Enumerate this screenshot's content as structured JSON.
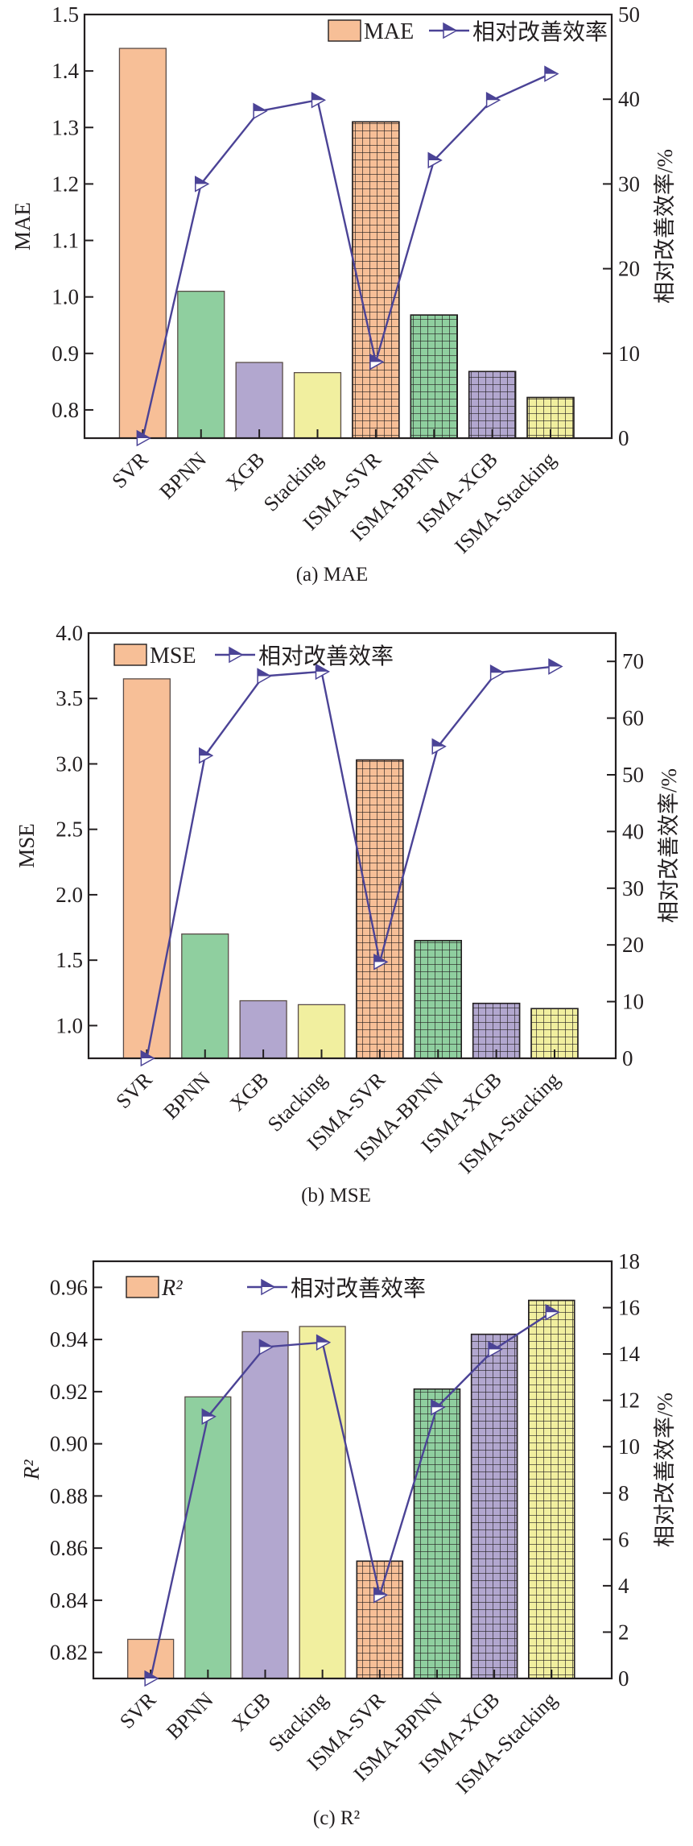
{
  "chart_data": [
    {
      "type": "bar",
      "title": "",
      "caption": "(a) MAE",
      "categories": [
        "SVR",
        "BPNN",
        "XGB",
        "Stacking",
        "ISMA-SVR",
        "ISMA-BPNN",
        "ISMA-XGB",
        "ISMA-Stacking"
      ],
      "series": [
        {
          "name": "MAE",
          "type": "bar",
          "axis": "left",
          "values": [
            1.44,
            1.01,
            0.884,
            0.866,
            1.31,
            0.968,
            0.868,
            0.822
          ]
        },
        {
          "name": "相对改善效率",
          "type": "line",
          "axis": "right",
          "values": [
            0,
            30.0,
            38.6,
            39.9,
            9.0,
            32.8,
            39.9,
            43.0
          ]
        }
      ],
      "xlabel": "",
      "ylabel": "MAE",
      "ylabel_italic": false,
      "y2label": "相对改善效率/%",
      "ylim": [
        0.75,
        1.5
      ],
      "yticks": [
        "0.8",
        "0.9",
        "1.0",
        "1.1",
        "1.2",
        "1.3",
        "1.4",
        "1.5"
      ],
      "ytick_values": [
        0.8,
        0.9,
        1.0,
        1.1,
        1.2,
        1.3,
        1.4,
        1.5
      ],
      "y2lim": [
        0,
        50
      ],
      "y2ticks": [
        "0",
        "10",
        "20",
        "30",
        "40",
        "50"
      ],
      "y2tick_values": [
        0,
        10,
        20,
        30,
        40,
        50
      ],
      "legend": {
        "placement": "top-right",
        "entries": [
          "MAE",
          "相对改善效率"
        ]
      },
      "grid": false
    },
    {
      "type": "bar",
      "title": "",
      "caption": "(b) MSE",
      "categories": [
        "SVR",
        "BPNN",
        "XGB",
        "Stacking",
        "ISMA-SVR",
        "ISMA-BPNN",
        "ISMA-XGB",
        "ISMA-Stacking"
      ],
      "series": [
        {
          "name": "MSE",
          "type": "bar",
          "axis": "left",
          "values": [
            3.65,
            1.7,
            1.19,
            1.16,
            3.03,
            1.65,
            1.17,
            1.13
          ]
        },
        {
          "name": "相对改善效率",
          "type": "line",
          "axis": "right",
          "values": [
            0,
            53.4,
            67.4,
            68.2,
            17.0,
            55.0,
            68.0,
            69.1
          ]
        }
      ],
      "xlabel": "",
      "ylabel": "MSE",
      "ylabel_italic": false,
      "y2label": "相对改善效率/%",
      "ylim": [
        0.75,
        4.0
      ],
      "yticks": [
        "1.0",
        "1.5",
        "2.0",
        "2.5",
        "3.0",
        "3.5",
        "4.0"
      ],
      "ytick_values": [
        1.0,
        1.5,
        2.0,
        2.5,
        3.0,
        3.5,
        4.0
      ],
      "y2lim": [
        0,
        75
      ],
      "y2ticks": [
        "0",
        "10",
        "20",
        "30",
        "40",
        "50",
        "60",
        "70"
      ],
      "y2tick_values": [
        0,
        10,
        20,
        30,
        40,
        50,
        60,
        70
      ],
      "legend": {
        "placement": "top-left",
        "entries": [
          "MSE",
          "相对改善效率"
        ]
      },
      "grid": false
    },
    {
      "type": "bar",
      "title": "",
      "caption": "(c) R²",
      "categories": [
        "SVR",
        "BPNN",
        "XGB",
        "Stacking",
        "ISMA-SVR",
        "ISMA-BPNN",
        "ISMA-XGB",
        "ISMA-Stacking"
      ],
      "series": [
        {
          "name": "R²",
          "type": "bar",
          "axis": "left",
          "values": [
            0.825,
            0.918,
            0.943,
            0.945,
            0.855,
            0.921,
            0.942,
            0.955
          ]
        },
        {
          "name": "相对改善效率",
          "type": "line",
          "axis": "right",
          "values": [
            0,
            11.3,
            14.3,
            14.5,
            3.6,
            11.7,
            14.2,
            15.8
          ]
        }
      ],
      "xlabel": "",
      "ylabel": "R²",
      "ylabel_italic": true,
      "y2label": "相对改善效率/%",
      "ylim": [
        0.81,
        0.97
      ],
      "yticks": [
        "0.82",
        "0.84",
        "0.86",
        "0.88",
        "0.90",
        "0.92",
        "0.94",
        "0.96"
      ],
      "ytick_values": [
        0.82,
        0.84,
        0.86,
        0.88,
        0.9,
        0.92,
        0.94,
        0.96
      ],
      "y2lim": [
        0,
        18
      ],
      "y2ticks": [
        "0",
        "2",
        "4",
        "6",
        "8",
        "10",
        "12",
        "14",
        "16",
        "18"
      ],
      "y2tick_values": [
        0,
        2,
        4,
        6,
        8,
        10,
        12,
        14,
        16,
        18
      ],
      "legend": {
        "placement": "top-left",
        "entries": [
          "R²",
          "相对改善效率"
        ]
      },
      "grid": false
    }
  ],
  "colors": {
    "bar_fills": [
      "#f7bf97",
      "#8fcf9f",
      "#b2a7cf",
      "#f1ef9f",
      "#f7bf97",
      "#8fcf9f",
      "#b2a7cf",
      "#f1ef9f"
    ],
    "hatched": [
      false,
      false,
      false,
      false,
      true,
      true,
      true,
      true
    ],
    "line": "#4b4396",
    "axis": "#231f20"
  }
}
